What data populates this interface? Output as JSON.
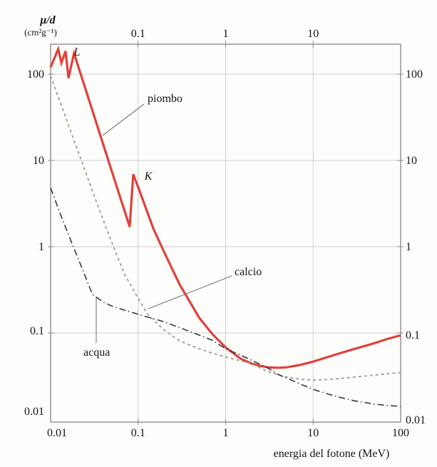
{
  "chart_data": {
    "type": "line",
    "title": "",
    "x_axis": {
      "title": "energia del fotone (MeV)",
      "scale": "log",
      "range": [
        0.01,
        100
      ],
      "ticks_bottom": [
        {
          "label": "0.01",
          "value": 0.01,
          "dx": 9
        },
        {
          "label": "0.1",
          "value": 0.1
        },
        {
          "label": "1",
          "value": 1
        },
        {
          "label": "10",
          "value": 10
        },
        {
          "label": "100",
          "value": 100
        }
      ],
      "ticks_top": [
        {
          "label": "0.1",
          "value": 0.1
        },
        {
          "label": "1",
          "value": 1
        },
        {
          "label": "10",
          "value": 10
        }
      ],
      "grid_values": [
        0.1,
        1,
        10
      ]
    },
    "y_axis": {
      "title": "μ/d",
      "units": "(cm²g⁻¹)",
      "scale": "log",
      "range": [
        0.01,
        220
      ],
      "ticks_left": [
        {
          "label": "100",
          "value": 100
        },
        {
          "label": "10",
          "value": 10
        },
        {
          "label": "1",
          "value": 1
        },
        {
          "label": "0.1",
          "value": 0.1,
          "dy": -3
        },
        {
          "label": "0.01",
          "value": 0.01,
          "dy": -11
        }
      ],
      "ticks_right": [
        {
          "label": "100",
          "value": 100
        },
        {
          "label": "10",
          "value": 10
        },
        {
          "label": "1",
          "value": 1
        },
        {
          "label": "0.1",
          "value": 0.1,
          "dy": 3
        },
        {
          "label": "0.01",
          "value": 0.01,
          "dy": 1
        }
      ],
      "grid_values": [
        100,
        10,
        1,
        0.1
      ]
    },
    "legend": "none",
    "grid": true,
    "colors": {
      "piombo": "#e0413c",
      "calcio": "#9a9a9a",
      "acqua": "#383838",
      "gridline": "#cdcdcd",
      "border": "#8c8c8c",
      "leader": "#777777"
    },
    "series": [
      {
        "name": "piombo",
        "style": "solid",
        "color": "#e0413c",
        "width": 3.2,
        "points": [
          [
            0.01,
            120
          ],
          [
            0.0122,
            195
          ],
          [
            0.0133,
            135
          ],
          [
            0.0148,
            185
          ],
          [
            0.016,
            90
          ],
          [
            0.0185,
            175
          ],
          [
            0.03,
            37.9
          ],
          [
            0.05,
            7.5
          ],
          [
            0.08,
            1.7
          ],
          [
            0.088,
            6.9
          ],
          [
            0.1,
            4.9
          ],
          [
            0.15,
            1.6
          ],
          [
            0.2,
            0.85
          ],
          [
            0.3,
            0.36
          ],
          [
            0.5,
            0.15
          ],
          [
            0.7,
            0.098
          ],
          [
            1,
            0.068
          ],
          [
            1.5,
            0.05
          ],
          [
            2,
            0.044
          ],
          [
            2.5,
            0.0415
          ],
          [
            3,
            0.04
          ],
          [
            4,
            0.0395
          ],
          [
            5,
            0.04
          ],
          [
            7,
            0.0425
          ],
          [
            10,
            0.0465
          ],
          [
            15,
            0.053
          ],
          [
            20,
            0.058
          ],
          [
            30,
            0.0655
          ],
          [
            50,
            0.076
          ],
          [
            70,
            0.085
          ],
          [
            100,
            0.094
          ]
        ]
      },
      {
        "name": "calcio",
        "style": "dashed",
        "color": "#9a9a9a",
        "width": 1.8,
        "points": [
          [
            0.01,
            95
          ],
          [
            0.013,
            46
          ],
          [
            0.0175,
            20
          ],
          [
            0.025,
            7.4
          ],
          [
            0.035,
            2.9
          ],
          [
            0.05,
            1.12
          ],
          [
            0.07,
            0.48
          ],
          [
            0.1,
            0.252
          ],
          [
            0.13,
            0.163
          ],
          [
            0.15,
            0.14
          ],
          [
            0.2,
            0.108
          ],
          [
            0.3,
            0.0805
          ],
          [
            0.5,
            0.0655
          ],
          [
            0.7,
            0.0585
          ],
          [
            1,
            0.0525
          ],
          [
            1.5,
            0.0475
          ],
          [
            2,
            0.0435
          ],
          [
            2.5,
            0.0392
          ],
          [
            3,
            0.036
          ],
          [
            4,
            0.0326
          ],
          [
            5,
            0.0308
          ],
          [
            7,
            0.0291
          ],
          [
            10,
            0.0284
          ],
          [
            15,
            0.0289
          ],
          [
            20,
            0.0296
          ],
          [
            30,
            0.0309
          ],
          [
            50,
            0.0324
          ],
          [
            70,
            0.0336
          ],
          [
            100,
            0.0348
          ]
        ]
      },
      {
        "name": "acqua",
        "style": "dashdot",
        "color": "#383838",
        "width": 1.6,
        "points": [
          [
            0.01,
            4.8
          ],
          [
            0.013,
            2.35
          ],
          [
            0.017,
            1.18
          ],
          [
            0.022,
            0.62
          ],
          [
            0.03,
            0.28
          ],
          [
            0.04,
            0.228
          ],
          [
            0.05,
            0.205
          ],
          [
            0.065,
            0.188
          ],
          [
            0.08,
            0.176
          ],
          [
            0.1,
            0.165
          ],
          [
            0.13,
            0.152
          ],
          [
            0.15,
            0.147
          ],
          [
            0.2,
            0.134
          ],
          [
            0.3,
            0.115
          ],
          [
            0.5,
            0.0945
          ],
          [
            0.7,
            0.0825
          ],
          [
            1,
            0.0655
          ],
          [
            1.5,
            0.055
          ],
          [
            2,
            0.048
          ],
          [
            2.5,
            0.0432
          ],
          [
            3,
            0.0395
          ],
          [
            4,
            0.033
          ],
          [
            5,
            0.03
          ],
          [
            7,
            0.0258
          ],
          [
            10,
            0.0222
          ],
          [
            15,
            0.0195
          ],
          [
            20,
            0.018
          ],
          [
            30,
            0.0163
          ],
          [
            50,
            0.015
          ],
          [
            70,
            0.0144
          ],
          [
            100,
            0.0141
          ]
        ]
      }
    ],
    "annotations": [
      {
        "text": "L",
        "kind": "edge-label"
      },
      {
        "text": "K",
        "kind": "edge-label"
      },
      {
        "text": "piombo",
        "kind": "series-label",
        "leader": [
          202,
          146,
          144,
          190
        ]
      },
      {
        "text": "calcio",
        "kind": "series-label",
        "leader": [
          325,
          387,
          208,
          433
        ]
      },
      {
        "text": "acqua",
        "kind": "series-label",
        "leader": [
          135,
          418,
          135,
          481
        ]
      }
    ]
  }
}
